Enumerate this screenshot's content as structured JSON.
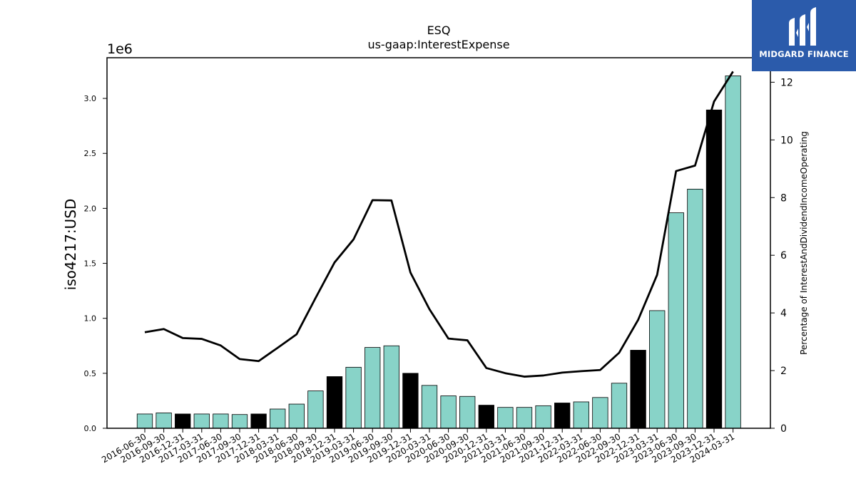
{
  "brand": {
    "name": "MIDGARD FINANCE",
    "bg_color": "#2b5bab"
  },
  "chart_data": {
    "type": "bar",
    "title": "ESQ",
    "subtitle": "us-gaap:InterestExpense",
    "ylabel": "iso4217:USD",
    "y2label": "Percentage of InterestAndDividendIncomeOperating",
    "y_offset_label": "1e6",
    "ylim": [
      0,
      3.37
    ],
    "y2lim": [
      0,
      12.85
    ],
    "yticks": [
      "0.0",
      "0.5",
      "1.0",
      "1.5",
      "2.0",
      "2.5",
      "3.0"
    ],
    "y2ticks": [
      "0",
      "2",
      "4",
      "6",
      "8",
      "10",
      "12"
    ],
    "categories": [
      "2016-06-30",
      "2016-09-30",
      "2016-12-31",
      "2017-03-31",
      "2017-06-30",
      "2017-09-30",
      "2017-12-31",
      "2018-03-31",
      "2018-06-30",
      "2018-09-30",
      "2018-12-31",
      "2019-03-31",
      "2019-06-30",
      "2019-09-30",
      "2019-12-31",
      "2020-03-31",
      "2020-06-30",
      "2020-09-30",
      "2020-12-31",
      "2021-03-31",
      "2021-06-30",
      "2021-09-30",
      "2021-12-31",
      "2022-03-31",
      "2022-06-30",
      "2022-09-30",
      "2022-12-31",
      "2023-03-31",
      "2023-06-30",
      "2023-09-30",
      "2023-12-31",
      "2024-03-31"
    ],
    "series": [
      {
        "name": "us-gaap:InterestExpense",
        "axis": "left",
        "kind": "bar",
        "values": [
          0.13,
          0.14,
          0.13,
          0.13,
          0.13,
          0.125,
          0.13,
          0.175,
          0.22,
          0.34,
          0.47,
          0.555,
          0.735,
          0.75,
          0.5,
          0.39,
          0.295,
          0.29,
          0.21,
          0.19,
          0.19,
          0.205,
          0.23,
          0.24,
          0.28,
          0.41,
          0.71,
          1.07,
          1.96,
          2.175,
          2.895,
          3.205
        ],
        "annual": [
          false,
          false,
          true,
          false,
          false,
          false,
          true,
          false,
          false,
          false,
          true,
          false,
          false,
          false,
          true,
          false,
          false,
          false,
          true,
          false,
          false,
          false,
          true,
          false,
          false,
          false,
          true,
          false,
          false,
          false,
          true,
          false
        ]
      },
      {
        "name": "Percentage of InterestAndDividendIncomeOperating",
        "axis": "right",
        "kind": "line",
        "values": [
          3.33,
          3.44,
          3.13,
          3.1,
          2.87,
          2.4,
          2.33,
          2.79,
          3.26,
          4.52,
          5.75,
          6.55,
          7.91,
          7.9,
          5.4,
          4.13,
          3.11,
          3.05,
          2.09,
          1.91,
          1.79,
          1.83,
          1.93,
          1.98,
          2.02,
          2.62,
          3.76,
          5.32,
          8.92,
          9.11,
          11.33,
          12.37
        ]
      }
    ],
    "colors": {
      "bar": "#88d3c8",
      "bar_annual": "#000000",
      "line": "#000000"
    },
    "grid": false,
    "legend": "none"
  }
}
